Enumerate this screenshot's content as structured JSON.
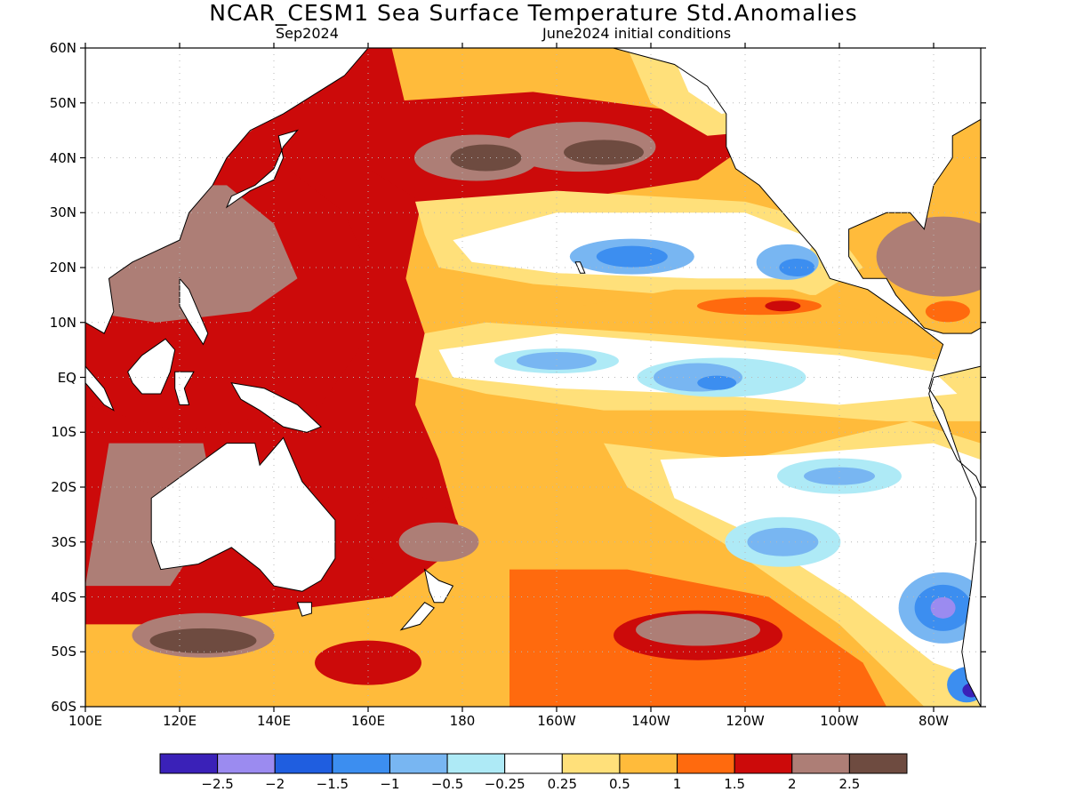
{
  "header": {
    "title": "NCAR_CESM1 Sea Surface Temperature Std.Anomalies",
    "valid_label": "Sep2024",
    "init_label": "June2024 initial conditions"
  },
  "map": {
    "lat_labels": [
      "60N",
      "50N",
      "40N",
      "30N",
      "20N",
      "10N",
      "EQ",
      "10S",
      "20S",
      "30S",
      "40S",
      "50S",
      "60S"
    ],
    "lon_labels": [
      "100E",
      "120E",
      "140E",
      "160E",
      "180",
      "160W",
      "140W",
      "120W",
      "100W",
      "80W"
    ],
    "lat_range": [
      -60,
      60
    ],
    "lon_range": [
      100,
      290
    ]
  },
  "legend": {
    "colors": [
      "#3a21b8",
      "#9b8bf0",
      "#1f5ee0",
      "#3c8ef0",
      "#78b6f2",
      "#aeeaf6",
      "#ffffff",
      "#ffe07a",
      "#ffbb3b",
      "#ff6a0e",
      "#cc0a0a",
      "#ad7e76",
      "#6e4b40"
    ],
    "labels": [
      "-2.5",
      "-2",
      "-1.5",
      "-1",
      "-0.5",
      "-0.25",
      "0.25",
      "0.5",
      "1",
      "1.5",
      "2",
      "2.5"
    ]
  },
  "colors": {
    "land": "#ffffff",
    "coast": "#000000",
    "grid": "#b8b8b8"
  }
}
